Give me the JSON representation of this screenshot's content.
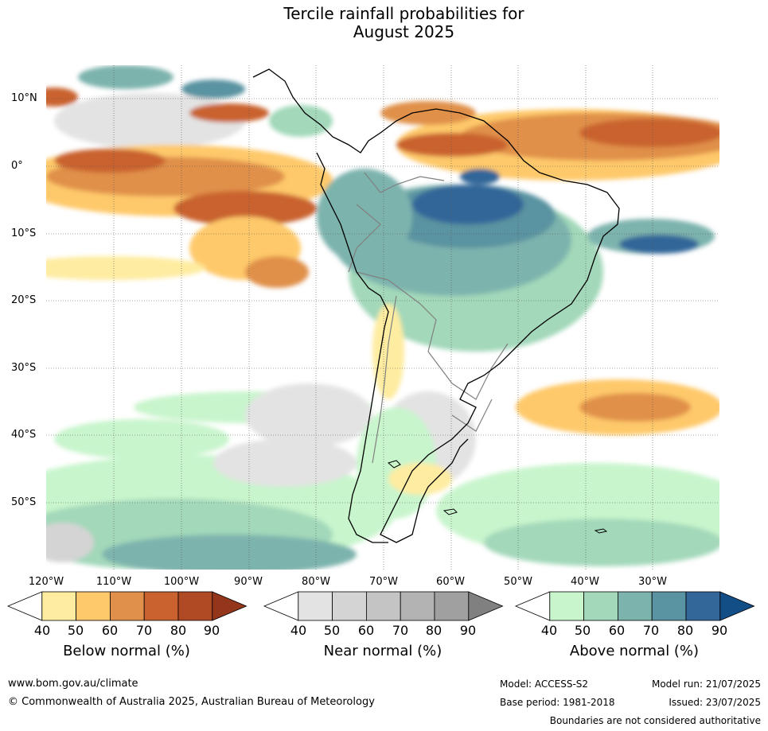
{
  "title": {
    "line1": "Tercile rainfall probabilities for",
    "line2": "August 2025"
  },
  "lat_labels": [
    "10°N",
    "0°",
    "10°S",
    "20°S",
    "30°S",
    "40°S",
    "50°S"
  ],
  "lon_labels": [
    "120°W",
    "110°W",
    "100°W",
    "90°W",
    "80°W",
    "70°W",
    "60°W",
    "50°W",
    "40°W",
    "30°W"
  ],
  "colorbars": [
    {
      "title": "Below normal (%)",
      "ticks": [
        "40",
        "50",
        "60",
        "70",
        "80",
        "90"
      ],
      "colors": [
        "#ffffff",
        "#feeca0",
        "#fec96a",
        "#e0904a",
        "#c9622f",
        "#b04a25",
        "#93361c"
      ]
    },
    {
      "title": "Near normal (%)",
      "ticks": [
        "40",
        "50",
        "60",
        "70",
        "80",
        "90"
      ],
      "colors": [
        "#ffffff",
        "#e3e3e3",
        "#d4d4d4",
        "#c4c4c4",
        "#b3b3b3",
        "#a0a0a0",
        "#808080"
      ]
    },
    {
      "title": "Above normal (%)",
      "ticks": [
        "40",
        "50",
        "60",
        "70",
        "80",
        "90"
      ],
      "colors": [
        "#ffffff",
        "#c8f5cc",
        "#a3d8ba",
        "#7db3ad",
        "#5a93a1",
        "#336699",
        "#134e87"
      ]
    }
  ],
  "footer": {
    "website": "www.bom.gov.au/climate",
    "copyright": "© Commonwealth of Australia 2025, Australian Bureau of Meteorology",
    "model": "Model: ACCESS-S2",
    "base_period": "Base period: 1981-2018",
    "model_run": "Model run: 21/07/2025",
    "issued": "Issued: 23/07/2025",
    "disclaimer": "Boundaries are not considered authoritative"
  }
}
